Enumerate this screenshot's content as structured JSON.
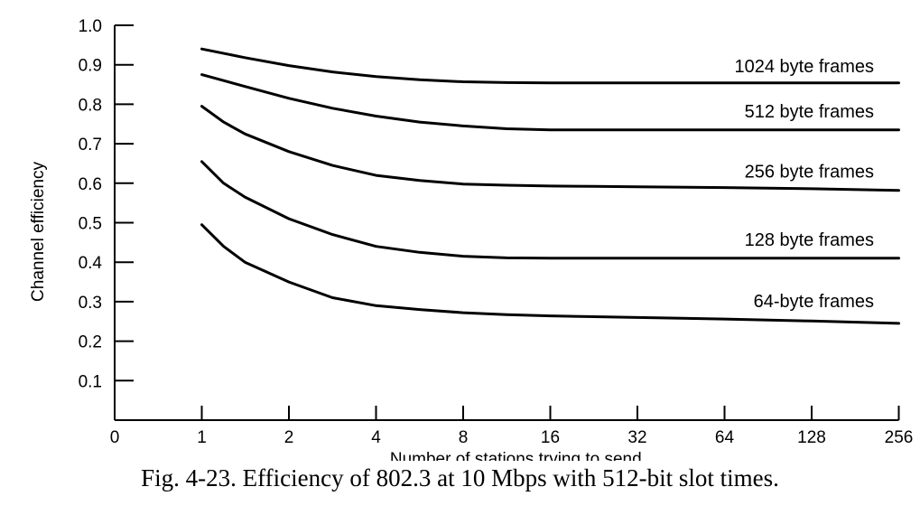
{
  "caption": "Fig. 4-23. Efficiency of 802.3 at 10 Mbps with 512-bit slot times.",
  "chart_data": {
    "type": "line",
    "title": "",
    "xlabel": "Number of stations trying to send",
    "ylabel": "Channel efficiency",
    "x_ticks": [
      "0",
      "1",
      "2",
      "4",
      "8",
      "16",
      "32",
      "64",
      "128",
      "256"
    ],
    "y_ticks": [
      "0.1",
      "0.2",
      "0.3",
      "0.4",
      "0.5",
      "0.6",
      "0.7",
      "0.8",
      "0.9",
      "1.0"
    ],
    "ylim": [
      0,
      1.0
    ],
    "grid": false,
    "line_color": "#000000",
    "series": [
      {
        "name": "1024 byte frames",
        "x": [
          1,
          1.41,
          2,
          2.83,
          4,
          5.66,
          8,
          11.3,
          16,
          22.6,
          32,
          64,
          128,
          256
        ],
        "values": [
          0.94,
          0.918,
          0.898,
          0.882,
          0.87,
          0.862,
          0.857,
          0.855,
          0.854,
          0.854,
          0.854,
          0.854,
          0.854,
          0.854
        ]
      },
      {
        "name": "512 byte frames",
        "x": [
          1,
          1.41,
          2,
          2.83,
          4,
          5.66,
          8,
          11.3,
          16,
          22.6,
          32,
          64,
          128,
          256
        ],
        "values": [
          0.875,
          0.845,
          0.815,
          0.79,
          0.77,
          0.755,
          0.745,
          0.738,
          0.735,
          0.735,
          0.735,
          0.735,
          0.735,
          0.735
        ]
      },
      {
        "name": "256 byte frames",
        "x": [
          1,
          1.19,
          1.41,
          2,
          2.83,
          4,
          5.66,
          8,
          11.3,
          16,
          22.6,
          32,
          64,
          128,
          256
        ],
        "values": [
          0.795,
          0.755,
          0.725,
          0.68,
          0.645,
          0.62,
          0.607,
          0.598,
          0.595,
          0.593,
          0.592,
          0.591,
          0.589,
          0.586,
          0.582
        ]
      },
      {
        "name": "128 byte frames",
        "x": [
          1,
          1.19,
          1.41,
          2,
          2.83,
          4,
          5.66,
          8,
          11.3,
          16,
          22.6,
          32,
          64,
          128,
          256
        ],
        "values": [
          0.655,
          0.6,
          0.565,
          0.51,
          0.47,
          0.44,
          0.425,
          0.415,
          0.411,
          0.41,
          0.41,
          0.41,
          0.41,
          0.41,
          0.41
        ]
      },
      {
        "name": "64-byte frames",
        "x": [
          1,
          1.19,
          1.41,
          2,
          2.83,
          4,
          5.66,
          8,
          11.3,
          16,
          22.6,
          32,
          64,
          128,
          256
        ],
        "values": [
          0.495,
          0.44,
          0.4,
          0.35,
          0.31,
          0.29,
          0.28,
          0.272,
          0.267,
          0.264,
          0.262,
          0.26,
          0.256,
          0.251,
          0.245
        ]
      }
    ]
  }
}
